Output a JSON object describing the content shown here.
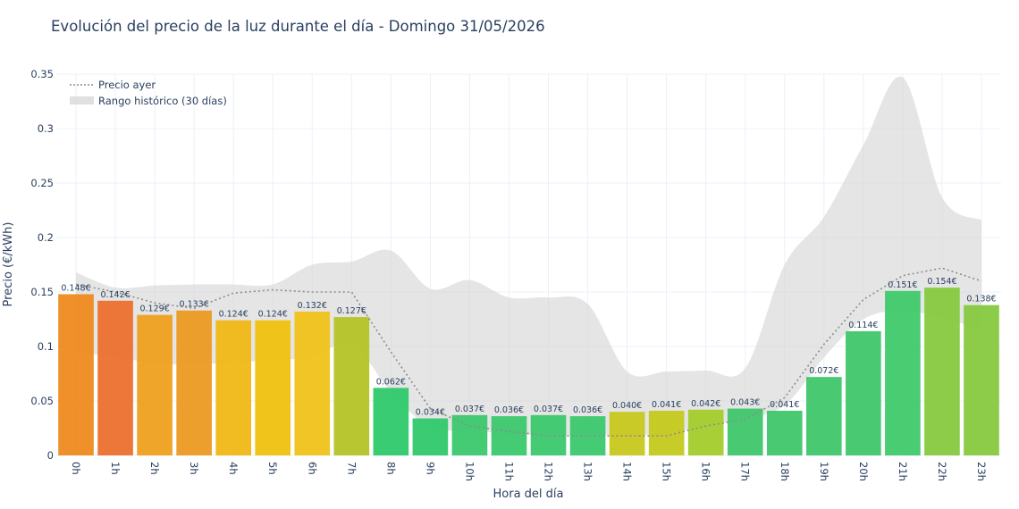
{
  "chart_data": {
    "type": "bar",
    "title": "Evolución del precio de la luz durante el día - Domingo 31/05/2026",
    "xlabel": "Hora del día",
    "ylabel": "Precio (€/kWh)",
    "ylim": [
      0,
      0.35
    ],
    "yticks": [
      0,
      0.05,
      0.1,
      0.15,
      0.2,
      0.25,
      0.3,
      0.35
    ],
    "ytick_labels": [
      "0",
      "0.05",
      "0.1",
      "0.15",
      "0.2",
      "0.25",
      "0.3",
      "0.35"
    ],
    "grid": true,
    "legend_position": "top-left",
    "categories": [
      "0h",
      "1h",
      "2h",
      "3h",
      "4h",
      "5h",
      "6h",
      "7h",
      "8h",
      "9h",
      "10h",
      "11h",
      "12h",
      "13h",
      "14h",
      "15h",
      "16h",
      "17h",
      "18h",
      "19h",
      "20h",
      "21h",
      "22h",
      "23h"
    ],
    "series": [
      {
        "kind": "bar",
        "values": [
          0.148,
          0.142,
          0.129,
          0.133,
          0.124,
          0.124,
          0.132,
          0.127,
          0.062,
          0.034,
          0.037,
          0.036,
          0.037,
          0.036,
          0.04,
          0.041,
          0.042,
          0.043,
          0.041,
          0.072,
          0.114,
          0.151,
          0.154,
          0.138
        ],
        "labels": [
          "0.148€",
          "0.142€",
          "0.129€",
          "0.133€",
          "0.124€",
          "0.124€",
          "0.132€",
          "0.127€",
          "0.062€",
          "0.034€",
          "0.037€",
          "0.036€",
          "0.037€",
          "0.036€",
          "0.040€",
          "0.041€",
          "0.042€",
          "0.043€",
          "0.041€",
          "0.072€",
          "0.114€",
          "0.151€",
          "0.154€",
          "0.138€"
        ],
        "colors": [
          "#ee8a1f",
          "#eb702d",
          "#eea01f",
          "#eb9a22",
          "#f0b716",
          "#f0c10f",
          "#f0c21a",
          "#b4c426",
          "#2fc96a",
          "#30c86a",
          "#3bc86c",
          "#3bc86c",
          "#3bc86c",
          "#3bc86c",
          "#c7c71c",
          "#c4c91c",
          "#a4cc2c",
          "#3fc66a",
          "#3fc66a",
          "#3fc66a",
          "#3fc66a",
          "#3fc96a",
          "#86c93e",
          "#86c93e"
        ]
      },
      {
        "name": "Precio ayer",
        "kind": "line",
        "style": "dotted",
        "color": "#8c8c8c",
        "values": [
          0.157,
          0.15,
          0.14,
          0.135,
          0.149,
          0.152,
          0.15,
          0.15,
          0.095,
          0.043,
          0.027,
          0.022,
          0.018,
          0.018,
          0.018,
          0.018,
          0.027,
          0.033,
          0.053,
          0.102,
          0.143,
          0.165,
          0.172,
          0.16
        ]
      },
      {
        "name": "Rango histórico (30 días)",
        "kind": "band",
        "color": "#d3d3d3",
        "upper": [
          0.168,
          0.154,
          0.156,
          0.157,
          0.157,
          0.157,
          0.175,
          0.178,
          0.188,
          0.153,
          0.161,
          0.145,
          0.145,
          0.139,
          0.077,
          0.077,
          0.078,
          0.08,
          0.175,
          0.219,
          0.285,
          0.347,
          0.237,
          0.216
        ],
        "lower": [
          0.094,
          0.091,
          0.084,
          0.084,
          0.085,
          0.088,
          0.09,
          0.103,
          0.058,
          0.026,
          0.023,
          0.02,
          0.019,
          0.019,
          0.019,
          0.02,
          0.027,
          0.034,
          0.046,
          0.09,
          0.125,
          0.133,
          0.126,
          0.116
        ]
      }
    ]
  }
}
